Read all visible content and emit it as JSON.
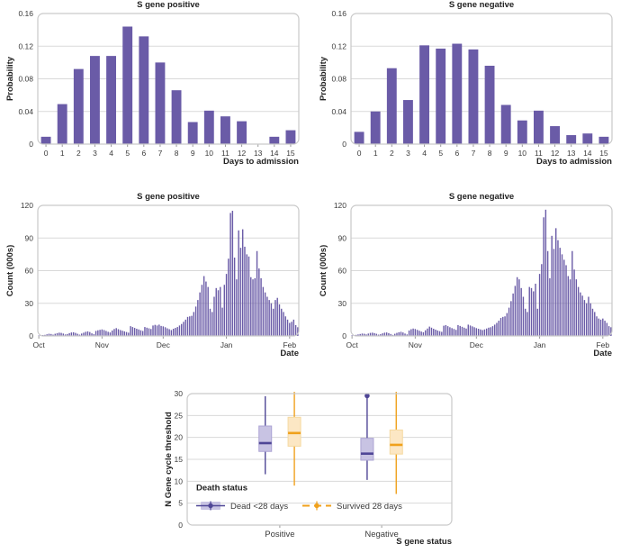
{
  "figure": {
    "background": "#ffffff",
    "accent_purple": "#6a5ba7",
    "grid_color": "#d9d9d9",
    "border_color": "#c9c9c9",
    "text_color": "#3b3b3b",
    "tick_color": "#9a9a9a"
  },
  "chart_data": [
    {
      "type": "bar",
      "title": "S gene positive",
      "ylabel": "Probability",
      "xlabel": "Days to admission",
      "categories": [
        "0",
        "1",
        "2",
        "3",
        "4",
        "5",
        "6",
        "7",
        "8",
        "9",
        "10",
        "11",
        "12",
        "13",
        "14",
        "15"
      ],
      "values": [
        0.009,
        0.049,
        0.092,
        0.108,
        0.108,
        0.144,
        0.132,
        0.1,
        0.066,
        0.027,
        0.041,
        0.034,
        0.028,
        0,
        0.009,
        0.017
      ],
      "ylim": [
        0,
        0.16
      ],
      "yticks": [
        0,
        0.04,
        0.08,
        0.12,
        0.16
      ],
      "ytick_labels": [
        "0",
        "0.04",
        "0.08",
        "0.12",
        "0.16"
      ],
      "grid": "horizontal",
      "legend": null
    },
    {
      "type": "bar",
      "title": "S gene negative",
      "ylabel": "Probability",
      "xlabel": "Days to admission",
      "categories": [
        "0",
        "1",
        "2",
        "3",
        "4",
        "5",
        "6",
        "7",
        "8",
        "9",
        "10",
        "11",
        "12",
        "13",
        "14",
        "15"
      ],
      "values": [
        0.015,
        0.04,
        0.093,
        0.054,
        0.121,
        0.117,
        0.123,
        0.116,
        0.096,
        0.048,
        0.029,
        0.041,
        0.022,
        0.011,
        0.013,
        0.009
      ],
      "ylim": [
        0,
        0.16
      ],
      "yticks": [
        0,
        0.04,
        0.08,
        0.12,
        0.16
      ],
      "ytick_labels": [
        "0",
        "0.04",
        "0.08",
        "0.12",
        "0.16"
      ],
      "grid": "horizontal",
      "legend": null
    },
    {
      "type": "bar",
      "dense": true,
      "title": "S gene positive",
      "ylabel": "Count (000s)",
      "xlabel": "Date",
      "x_ticks": [
        {
          "index": 0,
          "label": "Oct"
        },
        {
          "index": 31,
          "label": "Nov"
        },
        {
          "index": 61,
          "label": "Dec"
        },
        {
          "index": 92,
          "label": "Jan"
        },
        {
          "index": 123,
          "label": "Feb"
        }
      ],
      "values": [
        0.4,
        0.6,
        0.8,
        1.0,
        1.5,
        2.0,
        1.8,
        1.2,
        2.0,
        2.6,
        3.0,
        2.8,
        2.2,
        1.4,
        1.8,
        2.6,
        3.2,
        3.4,
        2.8,
        2.0,
        1.2,
        2.2,
        3.0,
        3.8,
        4.2,
        3.6,
        2.4,
        1.6,
        4.6,
        5.2,
        5.6,
        6.0,
        5.4,
        4.6,
        3.8,
        3.2,
        5.0,
        6.4,
        7.2,
        6.2,
        5.4,
        4.8,
        4.2,
        3.6,
        3.0,
        9.0,
        8.2,
        7.4,
        6.6,
        6.0,
        5.2,
        4.6,
        8.2,
        7.6,
        7.0,
        6.4,
        9.6,
        10.2,
        9.6,
        10.4,
        9.2,
        8.8,
        8.0,
        7.0,
        6.2,
        5.4,
        6.6,
        7.4,
        8.2,
        9.6,
        11.0,
        13.0,
        15.0,
        17.5,
        18.0,
        18.5,
        22.0,
        27.0,
        33.0,
        40.0,
        47.0,
        55.0,
        50.0,
        45.0,
        25.0,
        22.0,
        36.0,
        44.0,
        42.0,
        45.0,
        26.0,
        47.0,
        57.0,
        71.0,
        113.0,
        115.0,
        72.0,
        52.0,
        97.0,
        81.0,
        98.0,
        82.0,
        75.0,
        73.0,
        54.0,
        52.0,
        53.0,
        78.0,
        62.0,
        53.0,
        45.0,
        40.0,
        36.0,
        33.0,
        30.0,
        25.0,
        33.0,
        35.0,
        29.0,
        25.0,
        22.0,
        18.0,
        15.0,
        12.0,
        13.0,
        15.0,
        10.0,
        8.0
      ],
      "ylim": [
        0,
        120
      ],
      "yticks": [
        0,
        30,
        60,
        90,
        120
      ],
      "ytick_labels": [
        "0",
        "30",
        "60",
        "90",
        "120"
      ],
      "grid": "horizontal",
      "legend": null
    },
    {
      "type": "bar",
      "dense": true,
      "title": "S gene negative",
      "ylabel": "Count (000s)",
      "xlabel": "Date",
      "x_ticks": [
        {
          "index": 0,
          "label": "Oct"
        },
        {
          "index": 31,
          "label": "Nov"
        },
        {
          "index": 61,
          "label": "Dec"
        },
        {
          "index": 92,
          "label": "Jan"
        },
        {
          "index": 123,
          "label": "Feb"
        }
      ],
      "values": [
        0.5,
        0.8,
        1.0,
        1.4,
        1.8,
        2.2,
        2.0,
        1.4,
        2.2,
        2.8,
        3.0,
        2.6,
        2.0,
        1.2,
        1.6,
        2.4,
        3.0,
        3.2,
        2.6,
        1.8,
        1.0,
        2.0,
        2.8,
        3.4,
        3.8,
        3.2,
        2.2,
        1.4,
        5.0,
        6.2,
        6.8,
        6.4,
        5.6,
        4.8,
        4.0,
        3.4,
        5.2,
        6.8,
        8.6,
        7.6,
        6.6,
        5.8,
        5.0,
        4.4,
        3.8,
        9.4,
        10.0,
        9.0,
        8.0,
        7.2,
        6.4,
        5.6,
        10.0,
        9.2,
        8.4,
        7.6,
        6.8,
        10.4,
        9.6,
        8.8,
        8.0,
        7.2,
        6.6,
        6.0,
        5.4,
        6.0,
        6.8,
        7.6,
        8.0,
        9.0,
        10.4,
        12.0,
        14.0,
        16.5,
        17.5,
        18.0,
        21.0,
        26.0,
        32.0,
        39.0,
        46.0,
        54.0,
        52.0,
        44.0,
        36.0,
        25.0,
        22.0,
        45.0,
        44.0,
        41.0,
        48.0,
        25.0,
        57.0,
        66.0,
        109.0,
        116.0,
        78.0,
        53.0,
        92.0,
        80.0,
        99.0,
        88.0,
        81.0,
        75.0,
        70.0,
        65.0,
        55.0,
        52.0,
        78.0,
        61.0,
        52.0,
        45.0,
        40.0,
        37.0,
        33.0,
        30.0,
        36.0,
        30.0,
        25.0,
        22.0,
        18.0,
        16.0,
        15.0,
        16.0,
        14.0,
        12.0,
        9.0,
        8.0
      ],
      "ylim": [
        0,
        120
      ],
      "yticks": [
        0,
        30,
        60,
        90,
        120
      ],
      "ytick_labels": [
        "0",
        "30",
        "60",
        "90",
        "120"
      ],
      "grid": "horizontal",
      "legend": null
    },
    {
      "type": "boxplot",
      "title": "",
      "ylabel": "N Gene cycle threshold",
      "xlabel": "S gene status",
      "categories": [
        "Positive",
        "Negative"
      ],
      "ylim": [
        0,
        30
      ],
      "yticks": [
        0,
        5,
        10,
        15,
        20,
        25,
        30
      ],
      "ytick_labels": [
        "0",
        "5",
        "10",
        "15",
        "20",
        "25",
        "30"
      ],
      "grid": "horizontal",
      "legend": {
        "title": "Death status",
        "items": [
          "Dead <28 days",
          "Survived 28 days"
        ],
        "position": "bottom-left-inside"
      },
      "series": [
        {
          "name": "Dead <28 days",
          "color": "#4f4696",
          "fill": "#c8c3e3",
          "edge": "#aca4d4",
          "boxes": [
            {
              "category": "Positive",
              "low": 11.6,
              "q1": 16.8,
              "median": 18.7,
              "q3": 22.6,
              "high": 29.4,
              "outliers": []
            },
            {
              "category": "Negative",
              "low": 10.3,
              "q1": 14.8,
              "median": 16.3,
              "q3": 19.8,
              "high": 29.0,
              "outliers": [
                29.5
              ]
            }
          ]
        },
        {
          "name": "Survived 28 days",
          "color": "#f0a11c",
          "fill": "#fce7c4",
          "edge": "#f5d9a0",
          "boxes": [
            {
              "category": "Positive",
              "low": 9.0,
              "q1": 18.0,
              "median": 21.0,
              "q3": 24.6,
              "high": 30.4,
              "outliers": []
            },
            {
              "category": "Negative",
              "low": 7.1,
              "q1": 16.2,
              "median": 18.3,
              "q3": 21.7,
              "high": 30.4,
              "outliers": []
            }
          ]
        }
      ]
    }
  ]
}
